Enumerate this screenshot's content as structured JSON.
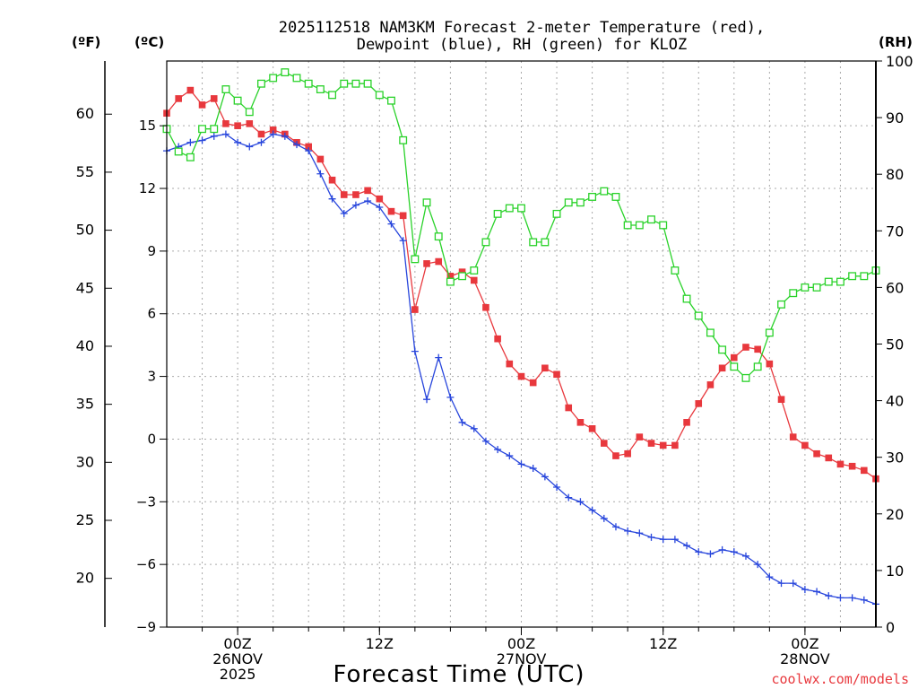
{
  "chart_data": {
    "type": "line",
    "title_line1": "2025112518 NAM3KM Forecast 2-meter Temperature (red),",
    "title_line2": "Dewpoint (blue), RH (green) for KLOZ",
    "xlabel": "Forecast Time (UTC)",
    "credit": "coolwx.com/models",
    "unit_labels": {
      "fahrenheit": "(ºF)",
      "celsius": "(ºC)",
      "rh": "(RH)"
    },
    "x_range": [
      18,
      78
    ],
    "celsius_range": [
      -9,
      18.1
    ],
    "rh_range": [
      0,
      100
    ],
    "celsius_ticks": [
      -9,
      -6,
      -3,
      0,
      3,
      6,
      9,
      12,
      15
    ],
    "fahrenheit_ticks": [
      20,
      25,
      30,
      35,
      40,
      45,
      50,
      55,
      60
    ],
    "rh_ticks": [
      0,
      10,
      20,
      30,
      40,
      50,
      60,
      70,
      80,
      90,
      100
    ],
    "x_ticks": [
      {
        "x": 24,
        "labels": [
          "00Z",
          "26NOV",
          "2025"
        ]
      },
      {
        "x": 36,
        "labels": [
          "12Z"
        ]
      },
      {
        "x": 48,
        "labels": [
          "00Z",
          "27NOV"
        ]
      },
      {
        "x": 60,
        "labels": [
          "12Z"
        ]
      },
      {
        "x": 72,
        "labels": [
          "00Z",
          "28NOV"
        ]
      }
    ],
    "colors": {
      "temperature": "#e8383d",
      "dewpoint": "#2846dc",
      "rh": "#2ad22a",
      "grid": "#aaaaaa"
    },
    "series": [
      {
        "name": "Temperature",
        "axis": "celsius",
        "marker": "filled-square",
        "x": [
          18,
          19,
          20,
          21,
          22,
          23,
          24,
          25,
          26,
          27,
          28,
          29,
          30,
          31,
          32,
          33,
          34,
          35,
          36,
          37,
          38,
          39,
          40,
          41,
          42,
          43,
          44,
          45,
          46,
          47,
          48,
          49,
          50,
          51,
          52,
          53,
          54,
          55,
          56,
          57,
          58,
          59,
          60,
          61,
          62,
          63,
          64,
          65,
          66,
          67,
          68,
          69,
          70,
          71,
          72,
          73,
          74,
          75,
          76,
          77,
          78
        ],
        "values": [
          15.6,
          16.3,
          16.7,
          16.0,
          16.3,
          15.1,
          15.0,
          15.1,
          14.6,
          14.8,
          14.6,
          14.2,
          14.0,
          13.4,
          12.4,
          11.7,
          11.7,
          11.9,
          11.5,
          10.9,
          10.7,
          6.2,
          8.4,
          8.5,
          7.8,
          8.0,
          7.6,
          6.3,
          4.8,
          3.6,
          3.0,
          2.7,
          3.4,
          3.1,
          1.5,
          0.8,
          0.5,
          -0.2,
          -0.8,
          -0.7,
          0.1,
          -0.2,
          -0.3,
          -0.3,
          0.8,
          1.7,
          2.6,
          3.4,
          3.9,
          4.4,
          4.3,
          3.6,
          1.9,
          0.1,
          -0.3,
          -0.7,
          -0.9,
          -1.2,
          -1.3,
          -1.5,
          -1.9
        ]
      },
      {
        "name": "Dewpoint",
        "axis": "celsius",
        "marker": "plus",
        "x": [
          18,
          19,
          20,
          21,
          22,
          23,
          24,
          25,
          26,
          27,
          28,
          29,
          30,
          31,
          32,
          33,
          34,
          35,
          36,
          37,
          38,
          39,
          40,
          41,
          42,
          43,
          44,
          45,
          46,
          47,
          48,
          49,
          50,
          51,
          52,
          53,
          54,
          55,
          56,
          57,
          58,
          59,
          60,
          61,
          62,
          63,
          64,
          65,
          66,
          67,
          68,
          69,
          70,
          71,
          72,
          73,
          74,
          75,
          76,
          77,
          78
        ],
        "values": [
          13.8,
          14.0,
          14.2,
          14.3,
          14.5,
          14.6,
          14.2,
          14.0,
          14.2,
          14.6,
          14.5,
          14.1,
          13.8,
          12.7,
          11.5,
          10.8,
          11.2,
          11.4,
          11.1,
          10.3,
          9.5,
          4.2,
          1.9,
          3.9,
          2.0,
          0.8,
          0.5,
          -0.1,
          -0.5,
          -0.8,
          -1.2,
          -1.4,
          -1.8,
          -2.3,
          -2.8,
          -3.0,
          -3.4,
          -3.8,
          -4.2,
          -4.4,
          -4.5,
          -4.7,
          -4.8,
          -4.8,
          -5.1,
          -5.4,
          -5.5,
          -5.3,
          -5.4,
          -5.6,
          -6.0,
          -6.6,
          -6.9,
          -6.9,
          -7.2,
          -7.3,
          -7.5,
          -7.6,
          -7.6,
          -7.7,
          -7.9
        ]
      },
      {
        "name": "RH",
        "axis": "rh",
        "marker": "open-square",
        "x": [
          18,
          19,
          20,
          21,
          22,
          23,
          24,
          25,
          26,
          27,
          28,
          29,
          30,
          31,
          32,
          33,
          34,
          35,
          36,
          37,
          38,
          39,
          40,
          41,
          42,
          43,
          44,
          45,
          46,
          47,
          48,
          49,
          50,
          51,
          52,
          53,
          54,
          55,
          56,
          57,
          58,
          59,
          60,
          61,
          62,
          63,
          64,
          65,
          66,
          67,
          68,
          69,
          70,
          71,
          72,
          73,
          74,
          75,
          76,
          77,
          78
        ],
        "values": [
          88,
          84,
          83,
          88,
          88,
          95,
          93,
          91,
          96,
          97,
          98,
          97,
          96,
          95,
          94,
          96,
          96,
          96,
          94,
          93,
          86,
          65,
          75,
          69,
          61,
          62,
          63,
          68,
          73,
          74,
          74,
          68,
          68,
          73,
          75,
          75,
          76,
          77,
          76,
          71,
          71,
          72,
          71,
          63,
          58,
          55,
          52,
          49,
          46,
          44,
          46,
          52,
          57,
          59,
          60,
          60,
          61,
          61,
          62,
          62,
          63
        ]
      }
    ]
  }
}
